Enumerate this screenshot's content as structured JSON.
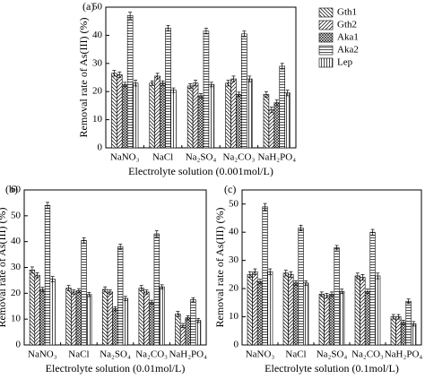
{
  "chart_data": [
    {
      "type": "bar",
      "panel_label": "(a)",
      "xlabel": "Electrolyte solution (0.001mol/L)",
      "ylabel": "Removal rate of As(III) (%)",
      "categories": [
        "NaNO₃",
        "NaCl",
        "Na₂SO₄",
        "Na₂CO₃",
        "NaH₂PO₄"
      ],
      "ylim": [
        0,
        50
      ],
      "yticks": [
        0,
        10,
        20,
        30,
        40,
        50
      ],
      "legend": "right",
      "series": [
        {
          "name": "Gth1",
          "color": "#000000",
          "hatch": "backslash",
          "values": [
            26.5,
            23,
            22,
            23,
            19
          ],
          "errors": [
            1,
            0.8,
            0.8,
            1,
            1
          ]
        },
        {
          "name": "Gth2",
          "color": "#000000",
          "hatch": "slash",
          "values": [
            26,
            25.5,
            23,
            24.5,
            13.5
          ],
          "errors": [
            1,
            1,
            1,
            1,
            1
          ]
        },
        {
          "name": "Aka1",
          "color": "#000000",
          "hatch": "cross",
          "values": [
            22.5,
            23,
            18.5,
            19,
            16
          ],
          "errors": [
            0.8,
            0.8,
            0.8,
            0.8,
            1
          ]
        },
        {
          "name": "Aka2",
          "color": "#000000",
          "hatch": "horizontal",
          "values": [
            47,
            42.5,
            41.5,
            40.5,
            29
          ],
          "errors": [
            1.2,
            1,
            1,
            1,
            1
          ]
        },
        {
          "name": "Lep",
          "color": "#000000",
          "hatch": "vertical",
          "values": [
            23,
            20.5,
            22.5,
            24.5,
            19.5
          ],
          "errors": [
            1,
            0.8,
            0.8,
            1,
            1
          ]
        }
      ]
    },
    {
      "type": "bar",
      "panel_label": "(b)",
      "xlabel": "Electrolyte solution (0.01mol/L)",
      "ylabel": "Removal rate of As(III) (%)",
      "categories": [
        "NaNO₃",
        "NaCl",
        "Na₂SO₄",
        "Na₂CO₃",
        "NaH₂PO₄"
      ],
      "ylim": [
        0,
        60
      ],
      "yticks": [
        0,
        10,
        20,
        30,
        40,
        50,
        60
      ],
      "series": [
        {
          "color": "#000000",
          "hatch": "backslash",
          "values": [
            29,
            22,
            21.5,
            22,
            12
          ],
          "errors": [
            1.2,
            1,
            1,
            1,
            1
          ]
        },
        {
          "color": "#000000",
          "hatch": "slash",
          "values": [
            27,
            20.5,
            20.5,
            20.5,
            7.5
          ],
          "errors": [
            1,
            0.8,
            0.8,
            0.8,
            0.8
          ]
        },
        {
          "color": "#000000",
          "hatch": "cross",
          "values": [
            21.5,
            21,
            14,
            16.5,
            10.5
          ],
          "errors": [
            0.8,
            0.8,
            0.8,
            0.8,
            0.8
          ]
        },
        {
          "color": "#000000",
          "hatch": "horizontal",
          "values": [
            54,
            40.5,
            38,
            43,
            17.5
          ],
          "errors": [
            1.2,
            1,
            1,
            1.2,
            0.8
          ]
        },
        {
          "color": "#000000",
          "hatch": "vertical",
          "values": [
            25.5,
            19.5,
            18,
            22.5,
            9.5
          ],
          "errors": [
            1,
            0.8,
            0.8,
            0.8,
            0.8
          ]
        }
      ]
    },
    {
      "type": "bar",
      "panel_label": "(c)",
      "xlabel": "Electrolyte solution (0.1mol/L)",
      "ylabel": "Removal rate of As(III) (%)",
      "categories": [
        "NaNO₃",
        "NaCl",
        "Na₂SO₄",
        "Na₂CO₃",
        "NaH₂PO₄"
      ],
      "ylim": [
        0,
        55
      ],
      "yticks": [
        0,
        10,
        20,
        30,
        40,
        50
      ],
      "series": [
        {
          "color": "#000000",
          "hatch": "backslash",
          "values": [
            25,
            25.5,
            18,
            24.5,
            10
          ],
          "errors": [
            1,
            1,
            0.8,
            1,
            0.8
          ]
        },
        {
          "color": "#000000",
          "hatch": "slash",
          "values": [
            26,
            25,
            17.5,
            24,
            10
          ],
          "errors": [
            1,
            1,
            0.8,
            1,
            0.8
          ]
        },
        {
          "color": "#000000",
          "hatch": "cross",
          "values": [
            22.5,
            22,
            18,
            19,
            8
          ],
          "errors": [
            0.8,
            0.8,
            0.8,
            0.8,
            0.8
          ]
        },
        {
          "color": "#000000",
          "hatch": "horizontal",
          "values": [
            49,
            41.5,
            34.5,
            40,
            15.5
          ],
          "errors": [
            1.2,
            1,
            0.8,
            1,
            0.8
          ]
        },
        {
          "color": "#000000",
          "hatch": "vertical",
          "values": [
            26,
            22,
            19,
            24.5,
            7.5
          ],
          "errors": [
            1,
            0.8,
            0.8,
            1,
            0.8
          ]
        }
      ]
    }
  ]
}
